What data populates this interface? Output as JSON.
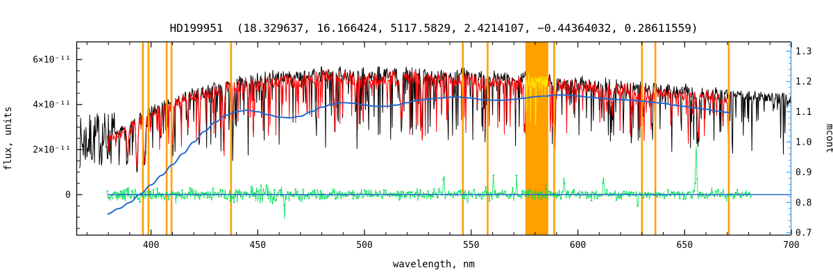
{
  "chart_data": {
    "type": "line",
    "title": "HD199951  (18.329637, 16.166424, 5117.5829, 2.4214107, −0.44364032, 0.28611559)",
    "xlabel": "wavelength, nm",
    "ylabel_left": "flux, units",
    "ylabel_right": "mcont",
    "xlim": [
      365,
      700
    ],
    "x_major_ticks": [
      400,
      450,
      500,
      550,
      600,
      650,
      700
    ],
    "x_minor_step": 10,
    "flux_lim_e11": [
      -1.815,
      6.8
    ],
    "flux_major_ticks": [
      {
        "v": 0,
        "label": "0"
      },
      {
        "v": 2,
        "label": "2×10⁻¹¹"
      },
      {
        "v": 4,
        "label": "4×10⁻¹¹"
      },
      {
        "v": 6,
        "label": "6×10⁻¹¹"
      }
    ],
    "flux_minor_step": 0.5,
    "mcont_lim": [
      0.691,
      1.332
    ],
    "mcont_major_ticks": [
      {
        "v": 0.7,
        "label": "0.7"
      },
      {
        "v": 0.8,
        "label": "0.8"
      },
      {
        "v": 0.9,
        "label": "0.9"
      },
      {
        "v": 1.0,
        "label": "1.0"
      },
      {
        "v": 1.1,
        "label": "1.1"
      },
      {
        "v": 1.2,
        "label": "1.2"
      },
      {
        "v": 1.3,
        "label": "1.3"
      }
    ],
    "mcont_minor_step": 0.02,
    "colors": {
      "observed": "#000000",
      "template": "#ff0000",
      "mask_spectrum": "#ffe800",
      "residual": "#00dd55",
      "mcont": "#2268cf",
      "right_axis": "#3e9ae6",
      "marker_lines": "#ff9f00",
      "band": "#ff9f00",
      "frame": "#000000"
    },
    "orange_lines": [
      396.2,
      398.8,
      407.3,
      409.6,
      437.5,
      546.1,
      557.7,
      588.9,
      630.0,
      636.3,
      670.7
    ],
    "orange_band": [
      575.4,
      586.1
    ],
    "series": {
      "observed": {
        "label": "observed spectrum",
        "range": [
          366.5,
          700
        ]
      },
      "template": {
        "label": "template spectrum",
        "range": [
          379.5,
          671.5
        ]
      },
      "mask": {
        "label": "band spectrum",
        "range": [
          575.6,
          585.9
        ]
      },
      "residual": {
        "label": "residuals",
        "range": [
          379.5,
          681
        ],
        "centered_on": 0
      },
      "mcont": {
        "label": "continuum ratio curve",
        "range": [
          379.5,
          671.5
        ],
        "axis": "right"
      },
      "zero": {
        "label": "zero flux line",
        "range": [
          379.5,
          700
        ],
        "flux": 0
      }
    },
    "envelope_e11": [
      [
        366.5,
        2.55
      ],
      [
        370,
        2.65
      ],
      [
        374,
        2.72
      ],
      [
        378,
        2.78
      ],
      [
        382,
        2.82
      ],
      [
        386,
        3.0
      ],
      [
        390,
        3.3
      ],
      [
        395,
        3.65
      ],
      [
        400,
        3.95
      ],
      [
        405,
        4.15
      ],
      [
        410,
        4.35
      ],
      [
        415,
        4.55
      ],
      [
        420,
        4.72
      ],
      [
        425,
        4.86
      ],
      [
        430,
        5.0
      ],
      [
        435,
        5.1
      ],
      [
        440,
        5.22
      ],
      [
        445,
        5.32
      ],
      [
        450,
        5.38
      ],
      [
        460,
        5.48
      ],
      [
        470,
        5.52
      ],
      [
        480,
        5.62
      ],
      [
        490,
        5.62
      ],
      [
        500,
        5.58
      ],
      [
        510,
        5.6
      ],
      [
        520,
        5.66
      ],
      [
        530,
        5.62
      ],
      [
        540,
        5.56
      ],
      [
        550,
        5.52
      ],
      [
        560,
        5.46
      ],
      [
        570,
        5.4
      ],
      [
        580,
        5.38
      ],
      [
        590,
        5.32
      ],
      [
        600,
        5.22
      ],
      [
        610,
        5.12
      ],
      [
        620,
        5.06
      ],
      [
        630,
        5.0
      ],
      [
        640,
        4.9
      ],
      [
        650,
        4.82
      ],
      [
        660,
        4.72
      ],
      [
        670,
        4.66
      ],
      [
        680,
        4.6
      ],
      [
        690,
        4.54
      ],
      [
        700,
        4.5
      ]
    ],
    "absorption_lines": [
      [
        389.0,
        0.55,
        0.5
      ],
      [
        393.4,
        0.72,
        0.6
      ],
      [
        396.9,
        0.66,
        0.6
      ],
      [
        404.6,
        0.4,
        0.3
      ],
      [
        410.2,
        0.55,
        0.4
      ],
      [
        417.2,
        0.4,
        0.3
      ],
      [
        422.7,
        0.5,
        0.35
      ],
      [
        434.0,
        0.6,
        0.4
      ],
      [
        438.4,
        0.42,
        0.3
      ],
      [
        445.5,
        0.35,
        0.3
      ],
      [
        486.1,
        0.5,
        0.35
      ],
      [
        495.8,
        0.3,
        0.3
      ],
      [
        517.2,
        0.42,
        0.6
      ],
      [
        526.9,
        0.45,
        0.4
      ],
      [
        539.0,
        0.3,
        0.3
      ],
      [
        552.8,
        0.3,
        0.3
      ],
      [
        589.2,
        0.48,
        0.5
      ],
      [
        612.2,
        0.3,
        0.3
      ],
      [
        616.2,
        0.32,
        0.3
      ],
      [
        625.2,
        0.3,
        0.3
      ],
      [
        630.7,
        0.28,
        0.3
      ],
      [
        643.9,
        0.3,
        0.3
      ],
      [
        656.3,
        0.52,
        0.45
      ],
      [
        668.0,
        0.3,
        0.3
      ]
    ],
    "residual_amp_e11": [
      [
        380,
        0.3
      ],
      [
        400,
        0.3
      ],
      [
        420,
        0.28
      ],
      [
        440,
        0.32
      ],
      [
        458,
        0.36
      ],
      [
        475,
        0.3
      ],
      [
        500,
        0.22
      ],
      [
        520,
        0.24
      ],
      [
        545,
        0.28
      ],
      [
        565,
        0.28
      ],
      [
        585,
        0.2
      ],
      [
        605,
        0.2
      ],
      [
        625,
        0.2
      ],
      [
        645,
        0.22
      ],
      [
        658,
        0.28
      ],
      [
        670,
        0.24
      ],
      [
        681,
        0.18
      ]
    ],
    "residual_spikes": [
      [
        462.5,
        -1.05,
        0.3
      ],
      [
        537.2,
        0.95,
        0.3
      ],
      [
        560.4,
        0.9,
        0.3
      ],
      [
        571.3,
        0.8,
        0.3
      ],
      [
        593.5,
        0.7,
        0.3
      ],
      [
        612.0,
        0.75,
        0.3
      ],
      [
        628.0,
        -0.7,
        0.3
      ],
      [
        655.4,
        2.25,
        0.4
      ]
    ],
    "mcont_curve": [
      [
        379.5,
        0.762
      ],
      [
        385,
        0.78
      ],
      [
        390,
        0.8
      ],
      [
        395,
        0.828
      ],
      [
        400,
        0.858
      ],
      [
        405,
        0.89
      ],
      [
        410,
        0.925
      ],
      [
        415,
        0.962
      ],
      [
        420,
        1.0
      ],
      [
        425,
        1.035
      ],
      [
        430,
        1.065
      ],
      [
        435,
        1.088
      ],
      [
        440,
        1.1
      ],
      [
        445,
        1.105
      ],
      [
        450,
        1.1
      ],
      [
        455,
        1.09
      ],
      [
        460,
        1.082
      ],
      [
        465,
        1.08
      ],
      [
        470,
        1.085
      ],
      [
        475,
        1.1
      ],
      [
        480,
        1.115
      ],
      [
        485,
        1.125
      ],
      [
        490,
        1.13
      ],
      [
        495,
        1.128
      ],
      [
        500,
        1.122
      ],
      [
        505,
        1.118
      ],
      [
        510,
        1.118
      ],
      [
        515,
        1.122
      ],
      [
        520,
        1.13
      ],
      [
        525,
        1.138
      ],
      [
        530,
        1.142
      ],
      [
        535,
        1.145
      ],
      [
        540,
        1.148
      ],
      [
        545,
        1.148
      ],
      [
        550,
        1.145
      ],
      [
        555,
        1.14
      ],
      [
        560,
        1.138
      ],
      [
        565,
        1.138
      ],
      [
        570,
        1.141
      ],
      [
        575,
        1.145
      ],
      [
        580,
        1.15
      ],
      [
        585,
        1.152
      ],
      [
        590,
        1.155
      ],
      [
        595,
        1.155
      ],
      [
        600,
        1.152
      ],
      [
        605,
        1.148
      ],
      [
        610,
        1.145
      ],
      [
        615,
        1.142
      ],
      [
        620,
        1.14
      ],
      [
        625,
        1.138
      ],
      [
        630,
        1.135
      ],
      [
        635,
        1.131
      ],
      [
        640,
        1.128
      ],
      [
        645,
        1.122
      ],
      [
        650,
        1.118
      ],
      [
        655,
        1.112
      ],
      [
        660,
        1.108
      ],
      [
        665,
        1.102
      ],
      [
        670,
        1.098
      ],
      [
        671.5,
        1.096
      ]
    ]
  }
}
